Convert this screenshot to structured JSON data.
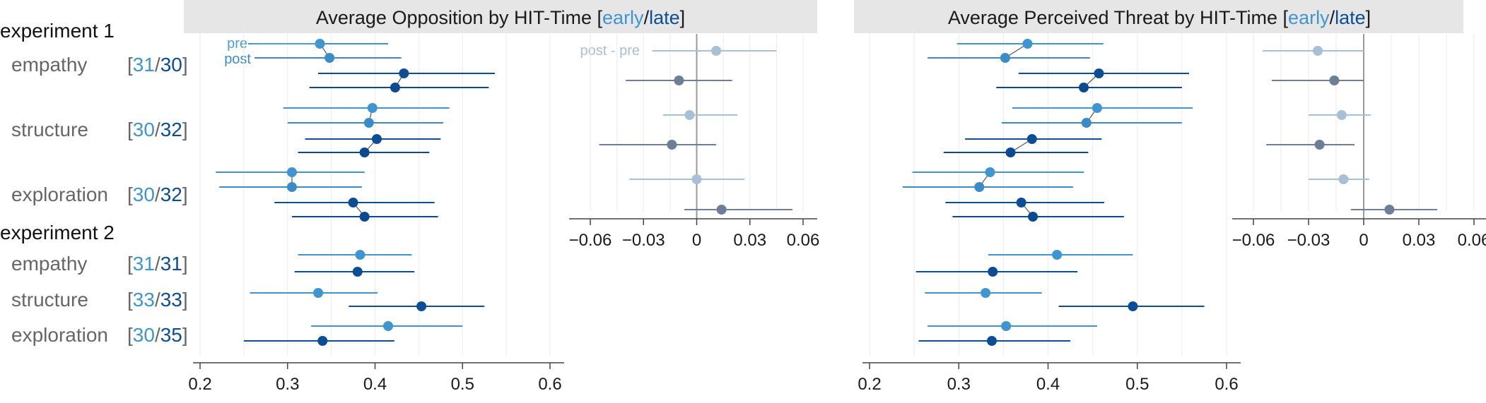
{
  "colors": {
    "pre": "#4a9fd4",
    "post": "#3a8cc8",
    "early": "#3f95cf",
    "late": "#0c4e96",
    "late_post": "#0a4a90",
    "diff_early": "#a8c0d6",
    "diff_late": "#6d7f96",
    "title_bg": "#e6e6e6",
    "grid": "#ebebeb",
    "axis": "#444444",
    "zero_line": "#9a9a9a",
    "bracket": "#666666"
  },
  "legend": {
    "pre": "pre",
    "post": "post",
    "diff": "post - pre"
  },
  "panel_titles": [
    {
      "text": "Average Opposition by HIT-Time [",
      "early": "early",
      "sep": "/",
      "late": "late",
      "close": "]"
    },
    {
      "text": "Average Perceived Threat by HIT-Time [",
      "early": "early",
      "sep": "/",
      "late": "late",
      "close": "]"
    }
  ],
  "groups": [
    {
      "type": "experiment",
      "label": "experiment 1"
    },
    {
      "type": "condition",
      "label": "empathy",
      "n_early": "31",
      "n_late": "30"
    },
    {
      "type": "condition",
      "label": "structure",
      "n_early": "30",
      "n_late": "32"
    },
    {
      "type": "condition",
      "label": "exploration",
      "n_early": "30",
      "n_late": "32"
    },
    {
      "type": "experiment",
      "label": "experiment 2"
    },
    {
      "type": "condition",
      "label": "empathy",
      "n_early": "31",
      "n_late": "31"
    },
    {
      "type": "condition",
      "label": "structure",
      "n_early": "33",
      "n_late": "33"
    },
    {
      "type": "condition",
      "label": "exploration",
      "n_early": "30",
      "n_late": "35"
    }
  ],
  "chart_data": [
    {
      "type": "dot-interval",
      "title": "Average Opposition by HIT-Time [early/late]",
      "xlim": [
        0.2,
        0.6
      ],
      "xticks": [
        "0.2",
        "0.3",
        "0.4",
        "0.5",
        "0.6"
      ],
      "xtick_values": [
        0.2,
        0.3,
        0.4,
        0.5,
        0.6
      ],
      "experiment1": [
        {
          "condition": "empathy",
          "time": "early",
          "pre": [
            0.337,
            0.255,
            0.415
          ],
          "post": [
            0.348,
            0.265,
            0.43
          ]
        },
        {
          "condition": "empathy",
          "time": "late",
          "pre": [
            0.433,
            0.335,
            0.537
          ],
          "post": [
            0.423,
            0.325,
            0.53
          ]
        },
        {
          "condition": "structure",
          "time": "early",
          "pre": [
            0.397,
            0.295,
            0.485
          ],
          "post": [
            0.393,
            0.3,
            0.478
          ]
        },
        {
          "condition": "structure",
          "time": "late",
          "pre": [
            0.402,
            0.32,
            0.475
          ],
          "post": [
            0.388,
            0.312,
            0.462
          ]
        },
        {
          "condition": "exploration",
          "time": "early",
          "pre": [
            0.305,
            0.218,
            0.388
          ],
          "post": [
            0.305,
            0.222,
            0.385
          ]
        },
        {
          "condition": "exploration",
          "time": "late",
          "pre": [
            0.375,
            0.285,
            0.468
          ],
          "post": [
            0.388,
            0.305,
            0.472
          ]
        }
      ],
      "experiment2": [
        {
          "condition": "empathy",
          "time": "early",
          "value": [
            0.383,
            0.312,
            0.442
          ]
        },
        {
          "condition": "empathy",
          "time": "late",
          "value": [
            0.38,
            0.308,
            0.445
          ]
        },
        {
          "condition": "structure",
          "time": "early",
          "value": [
            0.335,
            0.257,
            0.403
          ]
        },
        {
          "condition": "structure",
          "time": "late",
          "value": [
            0.453,
            0.37,
            0.525
          ]
        },
        {
          "condition": "exploration",
          "time": "early",
          "value": [
            0.415,
            0.327,
            0.5
          ]
        },
        {
          "condition": "exploration",
          "time": "late",
          "value": [
            0.34,
            0.25,
            0.422
          ]
        }
      ]
    },
    {
      "type": "dot-interval",
      "title": "post - pre",
      "xlim": [
        -0.065,
        0.065
      ],
      "xticks": [
        "−0.06",
        "−0.03",
        "0",
        "0.03",
        "0.06"
      ],
      "xtick_values": [
        -0.06,
        -0.03,
        0,
        0.03,
        0.06
      ],
      "values": [
        {
          "condition": "empathy",
          "time": "early",
          "diff": [
            0.011,
            -0.025,
            0.045
          ]
        },
        {
          "condition": "empathy",
          "time": "late",
          "diff": [
            -0.01,
            -0.04,
            0.02
          ]
        },
        {
          "condition": "structure",
          "time": "early",
          "diff": [
            -0.004,
            -0.019,
            0.023
          ]
        },
        {
          "condition": "structure",
          "time": "late",
          "diff": [
            -0.014,
            -0.055,
            0.011
          ]
        },
        {
          "condition": "exploration",
          "time": "early",
          "diff": [
            0.0,
            -0.038,
            0.027
          ]
        },
        {
          "condition": "exploration",
          "time": "late",
          "diff": [
            0.014,
            -0.007,
            0.054
          ]
        }
      ]
    },
    {
      "type": "dot-interval",
      "title": "Average Perceived Threat by HIT-Time [early/late]",
      "xlim": [
        0.2,
        0.6
      ],
      "xticks": [
        "0.2",
        "0.3",
        "0.4",
        "0.5",
        "0.6"
      ],
      "xtick_values": [
        0.2,
        0.3,
        0.4,
        0.5,
        0.6
      ],
      "experiment1": [
        {
          "condition": "empathy",
          "time": "early",
          "pre": [
            0.377,
            0.298,
            0.462
          ],
          "post": [
            0.352,
            0.265,
            0.447
          ]
        },
        {
          "condition": "empathy",
          "time": "late",
          "pre": [
            0.457,
            0.367,
            0.558
          ],
          "post": [
            0.44,
            0.342,
            0.55
          ]
        },
        {
          "condition": "structure",
          "time": "early",
          "pre": [
            0.455,
            0.36,
            0.562
          ],
          "post": [
            0.443,
            0.348,
            0.55
          ]
        },
        {
          "condition": "structure",
          "time": "late",
          "pre": [
            0.382,
            0.307,
            0.46
          ],
          "post": [
            0.358,
            0.283,
            0.445
          ]
        },
        {
          "condition": "exploration",
          "time": "early",
          "pre": [
            0.335,
            0.248,
            0.44
          ],
          "post": [
            0.323,
            0.237,
            0.428
          ]
        },
        {
          "condition": "exploration",
          "time": "late",
          "pre": [
            0.37,
            0.285,
            0.463
          ],
          "post": [
            0.383,
            0.293,
            0.485
          ]
        }
      ],
      "experiment2": [
        {
          "condition": "empathy",
          "time": "early",
          "value": [
            0.41,
            0.333,
            0.495
          ]
        },
        {
          "condition": "empathy",
          "time": "late",
          "value": [
            0.338,
            0.252,
            0.433
          ]
        },
        {
          "condition": "structure",
          "time": "early",
          "value": [
            0.33,
            0.262,
            0.393
          ]
        },
        {
          "condition": "structure",
          "time": "late",
          "value": [
            0.495,
            0.412,
            0.575
          ]
        },
        {
          "condition": "exploration",
          "time": "early",
          "value": [
            0.353,
            0.265,
            0.455
          ]
        },
        {
          "condition": "exploration",
          "time": "late",
          "value": [
            0.337,
            0.255,
            0.425
          ]
        }
      ]
    },
    {
      "type": "dot-interval",
      "title": "post - pre",
      "xlim": [
        -0.065,
        0.065
      ],
      "xticks": [
        "−0.06",
        "−0.03",
        "0",
        "0.03",
        "0.06"
      ],
      "xtick_values": [
        -0.06,
        -0.03,
        0,
        0.03,
        0.06
      ],
      "values": [
        {
          "condition": "empathy",
          "time": "early",
          "diff": [
            -0.025,
            -0.055,
            0.0
          ]
        },
        {
          "condition": "empathy",
          "time": "late",
          "diff": [
            -0.016,
            -0.05,
            0.0
          ]
        },
        {
          "condition": "structure",
          "time": "early",
          "diff": [
            -0.012,
            -0.03,
            0.004
          ]
        },
        {
          "condition": "structure",
          "time": "late",
          "diff": [
            -0.024,
            -0.053,
            -0.005
          ]
        },
        {
          "condition": "exploration",
          "time": "early",
          "diff": [
            -0.011,
            -0.03,
            0.003
          ]
        },
        {
          "condition": "exploration",
          "time": "late",
          "diff": [
            0.014,
            -0.007,
            0.04
          ]
        }
      ]
    }
  ]
}
